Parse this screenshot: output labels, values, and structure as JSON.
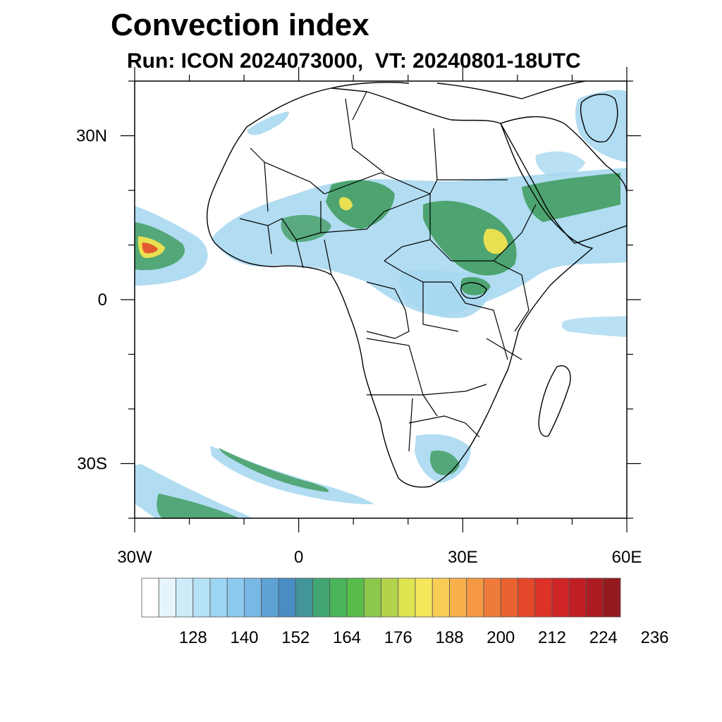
{
  "title": "Convection index",
  "subtitle": "Run: ICON 2024073000,  VT: 20240801-18UTC",
  "map": {
    "extent": {
      "lon_min": -30,
      "lon_max": 60,
      "lat_min": -40,
      "lat_max": 40
    },
    "x_ticks": [
      {
        "lon": -30,
        "label": "30W"
      },
      {
        "lon": 0,
        "label": "0"
      },
      {
        "lon": 30,
        "label": "30E"
      },
      {
        "lon": 60,
        "label": "60E"
      }
    ],
    "y_ticks": [
      {
        "lat": 30,
        "label": "30N"
      },
      {
        "lat": 0,
        "label": "0"
      },
      {
        "lat": -30,
        "label": "30S"
      }
    ],
    "colors": {
      "coast": "#000000",
      "field_low": "#a8d8f0",
      "field_mid": "#3c9a5a",
      "field_high": "#e0302a"
    }
  },
  "colorbar": {
    "colors": [
      "#ffffff",
      "#e6f5fc",
      "#cdebf9",
      "#b6e2f6",
      "#9dd6f3",
      "#8ccbef",
      "#78b8e4",
      "#5ea2d5",
      "#4a8cc4",
      "#429598",
      "#42a672",
      "#49b45a",
      "#58bd4a",
      "#8cc84c",
      "#b4d34c",
      "#dde450",
      "#f5e75a",
      "#f8cc55",
      "#f7b04c",
      "#f59944",
      "#ef7b3a",
      "#ea6230",
      "#e4482a",
      "#dc3228",
      "#cf2426",
      "#bf1e24",
      "#ab1b20",
      "#931a1e"
    ],
    "tick_labels": [
      "128",
      "140",
      "152",
      "164",
      "176",
      "188",
      "200",
      "212",
      "224",
      "236"
    ]
  }
}
